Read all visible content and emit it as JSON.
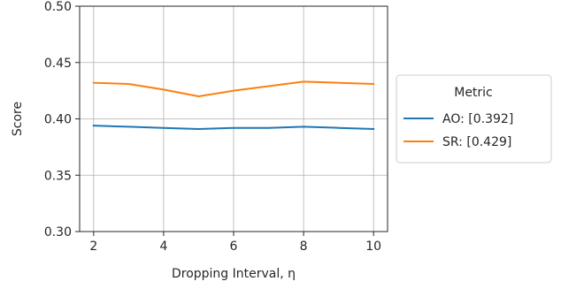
{
  "chart_data": {
    "type": "line",
    "title": "",
    "xlabel": "Dropping Interval, η",
    "ylabel": "Score",
    "xlim": [
      1.6,
      10.4
    ],
    "ylim": [
      0.3,
      0.5
    ],
    "xticks": [
      2,
      4,
      6,
      8,
      10
    ],
    "xtick_labels": [
      "2",
      "4",
      "6",
      "8",
      "10"
    ],
    "yticks": [
      0.3,
      0.35,
      0.4,
      0.45,
      0.5
    ],
    "ytick_labels": [
      "0.30",
      "0.35",
      "0.40",
      "0.45",
      "0.50"
    ],
    "grid": true,
    "legend": {
      "title": "Metric",
      "placement": "outside-right"
    },
    "series": [
      {
        "name": "AO: [0.392]",
        "color": "#1f77b4",
        "x": [
          2,
          3,
          4,
          5,
          6,
          7,
          8,
          9,
          10
        ],
        "y": [
          0.394,
          0.393,
          0.392,
          0.391,
          0.392,
          0.392,
          0.393,
          0.392,
          0.391
        ]
      },
      {
        "name": "SR: [0.429]",
        "color": "#ff7f0e",
        "x": [
          2,
          3,
          4,
          5,
          6,
          7,
          8,
          9,
          10
        ],
        "y": [
          0.432,
          0.431,
          0.426,
          0.42,
          0.425,
          0.429,
          0.433,
          0.432,
          0.431
        ]
      }
    ]
  }
}
